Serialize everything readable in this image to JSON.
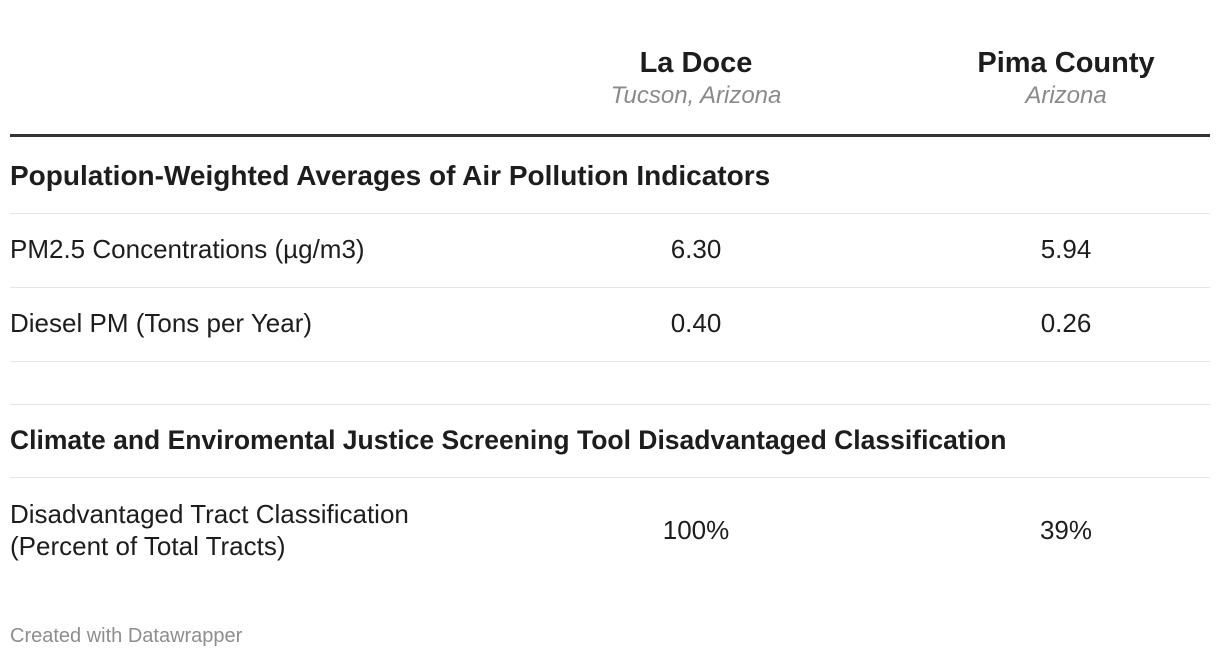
{
  "chart_data": {
    "type": "table",
    "columns": [
      {
        "title": "La Doce",
        "subtitle": "Tucson, Arizona"
      },
      {
        "title": "Pima County",
        "subtitle": "Arizona"
      }
    ],
    "sections": [
      {
        "title": "Population-Weighted Averages of Air Pollution Indicators",
        "rows": [
          {
            "label": "PM2.5 Concentrations (µg/m3)",
            "values": [
              "6.30",
              "5.94"
            ]
          },
          {
            "label": "Diesel PM (Tons per Year)",
            "values": [
              "0.40",
              "0.26"
            ]
          }
        ]
      },
      {
        "title": "Climate and Enviromental Justice Screening Tool Disadvantaged Classification",
        "rows": [
          {
            "label_line1": "Disadvantaged Tract Classification",
            "label_line2": "(Percent of Total Tracts)",
            "values": [
              "100%",
              "39%"
            ]
          }
        ]
      }
    ]
  },
  "footer": {
    "credit": "Created with Datawrapper"
  }
}
